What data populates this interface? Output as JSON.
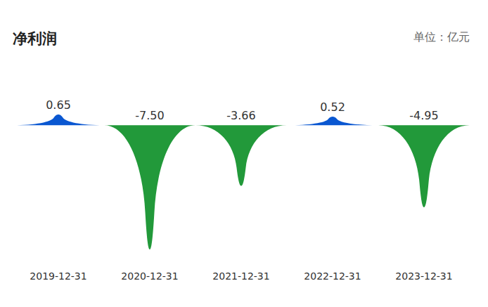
{
  "chart_data": {
    "type": "bar",
    "title": "净利润",
    "subtitle": "单位：亿元",
    "categories": [
      "2019-12-31",
      "2020-12-31",
      "2021-12-31",
      "2022-12-31",
      "2023-12-31"
    ],
    "values": [
      0.65,
      -7.5,
      -3.66,
      0.52,
      -4.95
    ],
    "value_labels": [
      "0.65",
      "-7.50",
      "-3.66",
      "0.52",
      "-4.95"
    ],
    "colors": [
      "#0a57d1",
      "#22993a",
      "#22993a",
      "#0a57d1",
      "#22993a"
    ],
    "ylim": [
      -7.5,
      0.65
    ],
    "data_labels": true,
    "tick_labels": "x",
    "grid": false
  }
}
